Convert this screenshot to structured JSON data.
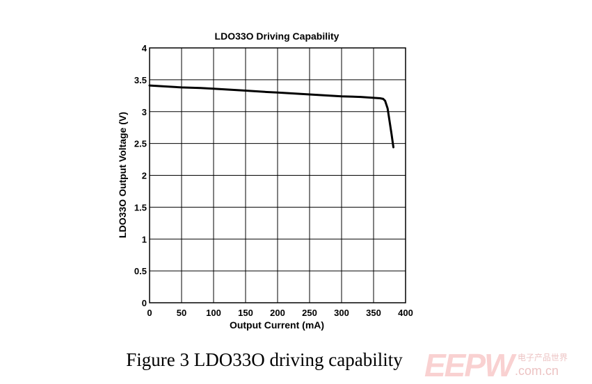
{
  "chart_data": {
    "type": "line",
    "title": "LDO33O Driving Capability",
    "xlabel": "Output Current (mA)",
    "ylabel": "LDO33O Output Voltage (V)",
    "xlim": [
      0,
      400
    ],
    "ylim": [
      0,
      4
    ],
    "x_ticks": [
      "0",
      "50",
      "100",
      "150",
      "200",
      "250",
      "300",
      "350",
      "400"
    ],
    "y_ticks": [
      "0",
      "0.5",
      "1",
      "1.5",
      "2",
      "2.5",
      "3",
      "3.5",
      "4"
    ],
    "grid": true,
    "series": [
      {
        "x": [
          0,
          50,
          80,
          100,
          150,
          180,
          200,
          250,
          300,
          330,
          360,
          365,
          368,
          372,
          375,
          378,
          381
        ],
        "y": [
          3.41,
          3.38,
          3.37,
          3.36,
          3.33,
          3.31,
          3.3,
          3.27,
          3.24,
          3.23,
          3.21,
          3.2,
          3.17,
          3.05,
          2.85,
          2.65,
          2.44
        ]
      }
    ]
  },
  "caption": "Figure 3 LDO33O driving capability",
  "watermark": {
    "logo_text": "EEPW",
    "cn_text": "电子产品世界",
    "url_text": ".com.cn"
  },
  "colors": {
    "line": "#000000",
    "grid": "#000000",
    "watermark": "#e85a5a"
  }
}
